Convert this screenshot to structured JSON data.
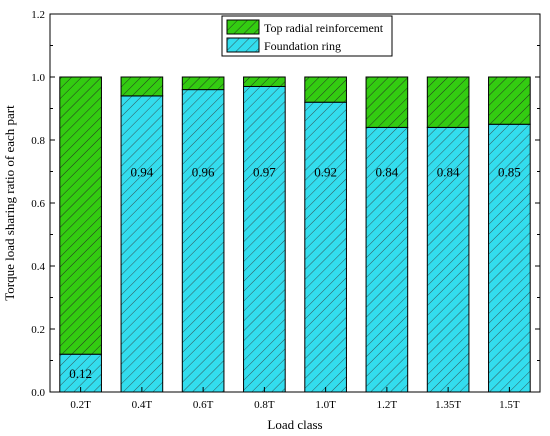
{
  "chart_data": {
    "type": "bar",
    "stacked": true,
    "categories": [
      "0.2T",
      "0.4T",
      "0.6T",
      "0.8T",
      "1.0T",
      "1.2T",
      "1.35T",
      "1.5T"
    ],
    "series": [
      {
        "name": "Foundation ring",
        "values": [
          0.12,
          0.94,
          0.96,
          0.97,
          0.92,
          0.84,
          0.84,
          0.85
        ],
        "color": "#33ddee",
        "hatch": true
      },
      {
        "name": "Top radial reinforcement",
        "values": [
          0.88,
          0.06,
          0.04,
          0.03,
          0.08,
          0.16,
          0.16,
          0.15
        ],
        "color": "#33cc11",
        "hatch": true
      }
    ],
    "data_labels": [
      "0.12",
      "0.94",
      "0.96",
      "0.97",
      "0.92",
      "0.84",
      "0.84",
      "0.85"
    ],
    "title": "",
    "xlabel": "Load class",
    "ylabel": "Torque load sharing ratio of each part",
    "ylim": [
      0,
      1.2
    ],
    "yticks": [
      "0.0",
      "0.2",
      "0.4",
      "0.6",
      "0.8",
      "1.0",
      "1.2"
    ],
    "legend_position": "top-right",
    "legend_order": [
      "Top radial reinforcement",
      "Foundation ring"
    ],
    "grid": false
  }
}
